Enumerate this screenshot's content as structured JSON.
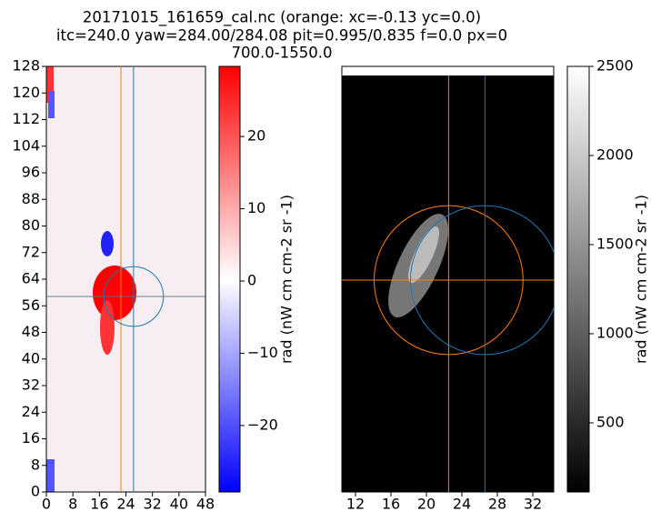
{
  "title": [
    "20171015_161659_cal.nc (orange: xc=-0.13 yc=0.0)",
    "itc=240.0 yaw=284.00/284.08 pit=0.995/0.835 f=0.0 px=0",
    "700.0-1550.0"
  ],
  "chart_data": [
    {
      "type": "heatmap",
      "xlim": [
        0,
        48
      ],
      "xticks": [
        0,
        8,
        16,
        24,
        32,
        40,
        48
      ],
      "ylim": [
        0,
        128
      ],
      "yticks": [
        0,
        8,
        16,
        24,
        32,
        40,
        48,
        56,
        64,
        72,
        80,
        88,
        96,
        104,
        112,
        120,
        128
      ],
      "colorbar": {
        "label": "rad (nW cm cm-2 sr -1)",
        "lim": [
          -29.2,
          29.7
        ],
        "ticks": [
          {
            "value": -20,
            "label": "−20"
          },
          {
            "value": -10,
            "label": "−10"
          },
          0,
          10,
          20
        ]
      },
      "crosshairs": [
        {
          "color": "#ff7f0e",
          "x": 22.5,
          "y": 58.8
        },
        {
          "color": "#1f77b4",
          "x": 26.3,
          "y": 58.8,
          "radius": 9
        }
      ]
    },
    {
      "type": "image",
      "xlim": [
        10.46,
        34.36
      ],
      "xticks": [
        12,
        16,
        20,
        24,
        28,
        32
      ],
      "colorbar": {
        "label": "rad (nW cm cm-2 sr -1)",
        "lim": [
          112,
          2500
        ],
        "ticks": [
          500,
          1000,
          1500,
          2000,
          2500
        ]
      },
      "crosshairs": [
        {
          "color": "#ff7f0e",
          "x": 22.5,
          "radius": 8.4
        },
        {
          "color": "#1f77b4",
          "x": 26.6,
          "radius": 8.4
        }
      ]
    }
  ]
}
